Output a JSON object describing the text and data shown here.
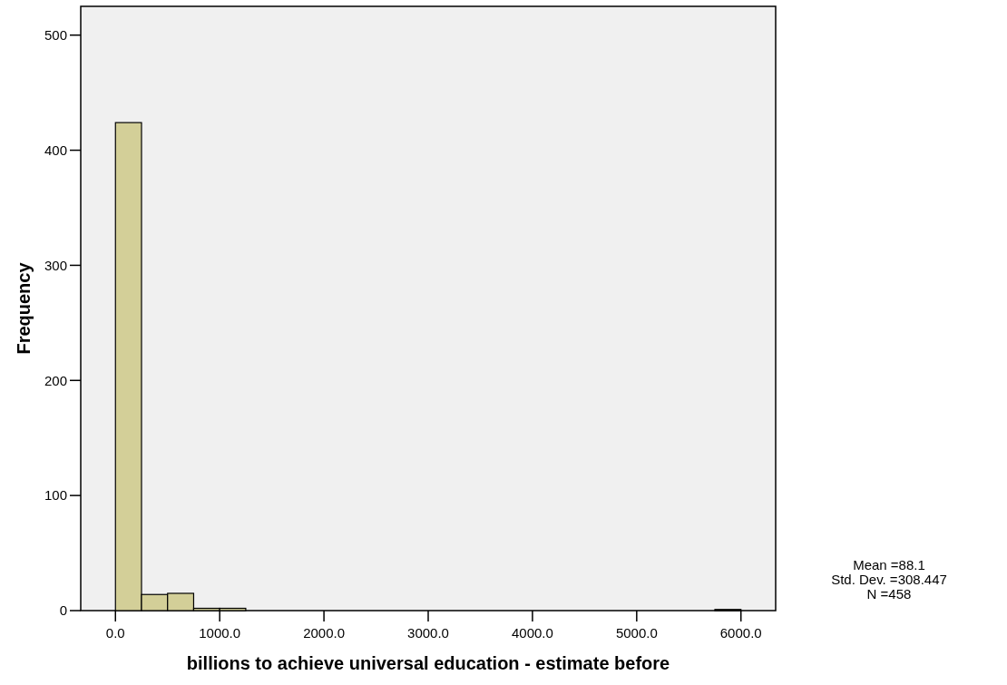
{
  "chart_data": {
    "type": "histogram",
    "xlabel": "billions to achieve universal education - estimate before",
    "ylabel": "Frequency",
    "bins": [
      0,
      250,
      500,
      750,
      1000,
      1250,
      1500,
      1750,
      2000,
      2250,
      2500,
      2750,
      3000,
      3250,
      3500,
      3750,
      4000,
      4250,
      4500,
      4750,
      5000,
      5250,
      5500,
      5750,
      6000
    ],
    "values": [
      424,
      14,
      15,
      2,
      2,
      0,
      0,
      0,
      0,
      0,
      0,
      0,
      0,
      0,
      0,
      0,
      0,
      0,
      0,
      0,
      0,
      0,
      0,
      1
    ],
    "color": "#d3cf98",
    "xlim": [
      -333,
      6333
    ],
    "xticks": [
      {
        "value": 0,
        "label": "0.0"
      },
      {
        "value": 1000,
        "label": "1000.0"
      },
      {
        "value": 2000,
        "label": "2000.0"
      },
      {
        "value": 3000,
        "label": "3000.0"
      },
      {
        "value": 4000,
        "label": "4000.0"
      },
      {
        "value": 5000,
        "label": "5000.0"
      },
      {
        "value": 6000,
        "label": "6000.0"
      }
    ],
    "ylim": [
      0,
      525
    ],
    "yticks": [
      0,
      100,
      200,
      300,
      400,
      500
    ],
    "annotations": [
      "Mean =88.1",
      "Std. Dev. =308.447",
      "N =458"
    ]
  }
}
